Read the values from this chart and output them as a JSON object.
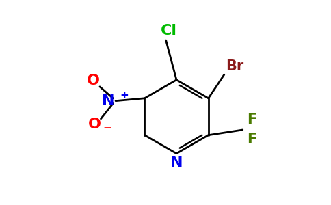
{
  "background_color": "#ffffff",
  "ring_color": "#000000",
  "line_width": 2.0,
  "atom_colors": {
    "N_ring": "#0000ee",
    "N_nitro": "#0000ee",
    "O": "#ff0000",
    "Br": "#8b1a1a",
    "Cl": "#00bb00",
    "F": "#4a7a00",
    "C": "#000000"
  },
  "font_size_main": 15,
  "font_size_super": 11
}
